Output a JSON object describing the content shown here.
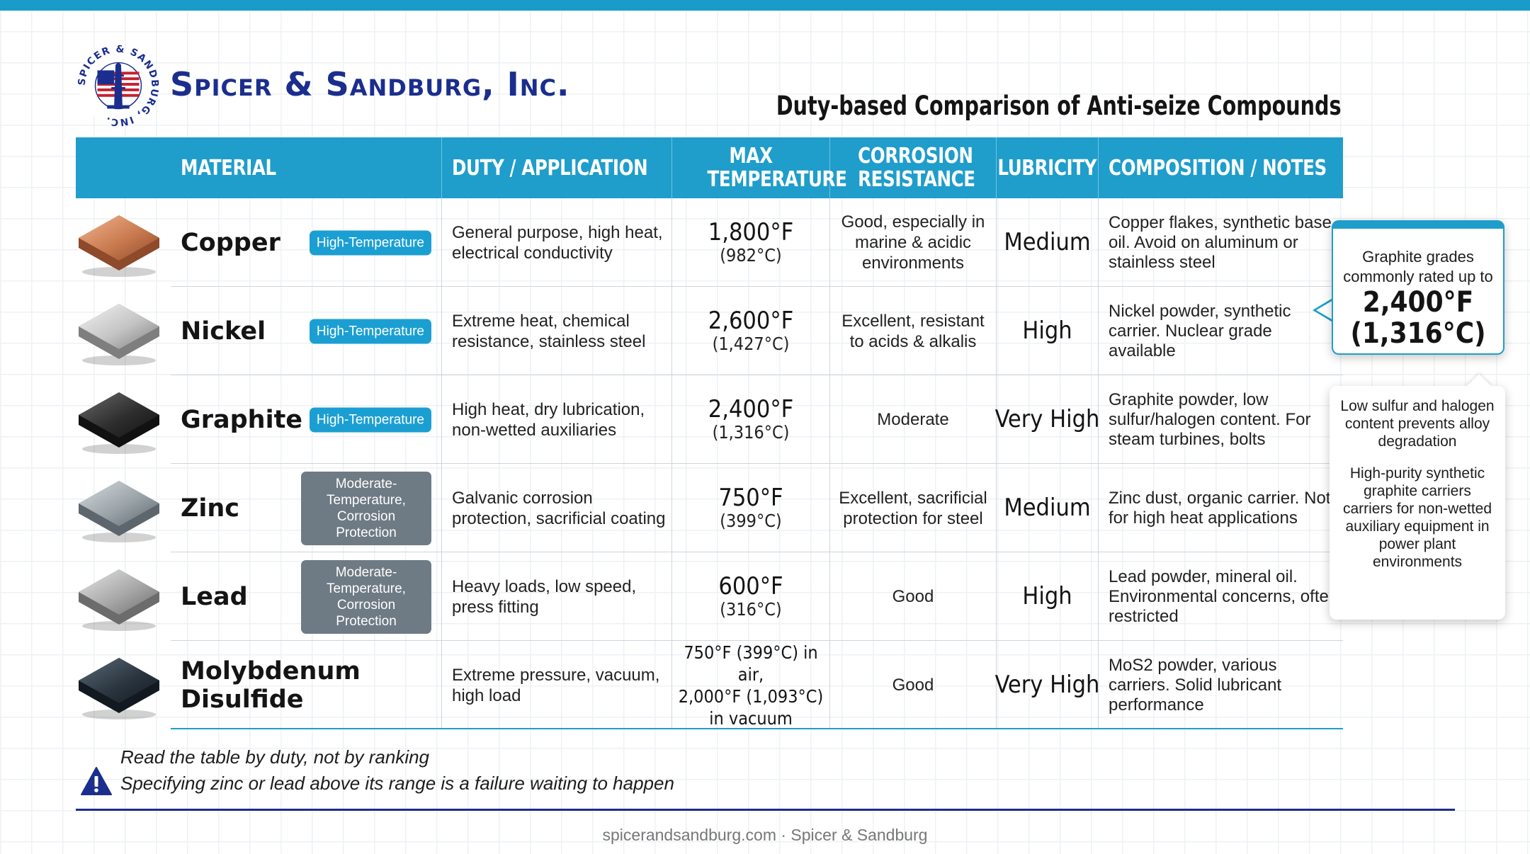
{
  "company": {
    "name": "Spicer & Sandburg, Inc.",
    "logo_ring_text": "SPICER & SANDBURG, INC."
  },
  "document_title": "Duty-based Comparison of Anti-seize Compounds",
  "columns": {
    "material": "MATERIAL",
    "duty": "DUTY / APPLICATION",
    "max_temp": "MAX TEMPERATURE",
    "corrosion": "CORROSION RESISTANCE",
    "lubricity": "LUBRICITY",
    "notes": "COMPOSITION / NOTES"
  },
  "rows": [
    {
      "material": "Copper",
      "swatch": "copper",
      "badge": "High-Temperature",
      "badge_color": "#1b9fd2",
      "duty": "General purpose, high heat, electrical conductivity",
      "temp_f": "1,800°F",
      "temp_c": "(982°C)",
      "corrosion": "Good, especially in marine & acidic environments",
      "lubricity": "Medium",
      "notes": "Copper flakes, synthetic base oil. Avoid on aluminum or stainless steel"
    },
    {
      "material": "Nickel",
      "swatch": "nickel",
      "badge": "High-Temperature",
      "badge_color": "#1b9fd2",
      "duty": "Extreme heat, chemical resistance, stainless steel",
      "temp_f": "2,600°F",
      "temp_c": "(1,427°C)",
      "corrosion": "Excellent, resistant to acids & alkalis",
      "lubricity": "High",
      "notes": "Nickel powder, synthetic carrier. Nuclear grade available"
    },
    {
      "material": "Graphite",
      "swatch": "graphite",
      "badge": "High-Temperature",
      "badge_color": "#1b9fd2",
      "duty": "High heat, dry lubrication, non-wetted auxiliaries",
      "temp_f": "2,400°F",
      "temp_c": "(1,316°C)",
      "corrosion": "Moderate",
      "lubricity": "Very High",
      "notes": "Graphite powder, low sulfur/halogen content. For steam turbines, bolts"
    },
    {
      "material": "Zinc",
      "swatch": "zinc",
      "badge": "Moderate-Temperature, Corrosion Protection",
      "badge_color": "#6e7a84",
      "duty": "Galvanic corrosion protection, sacrificial coating",
      "temp_f": "750°F",
      "temp_c": "(399°C)",
      "corrosion": "Excellent, sacrificial protection for steel",
      "lubricity": "Medium",
      "notes": "Zinc dust, organic carrier. Not for high heat applications"
    },
    {
      "material": "Lead",
      "swatch": "lead",
      "badge": "Moderate-Temperature, Corrosion Protection",
      "badge_color": "#6e7a84",
      "duty": "Heavy loads, low speed, press fitting",
      "temp_f": "600°F",
      "temp_c": "(316°C)",
      "corrosion": "Good",
      "lubricity": "High",
      "notes": "Lead powder, mineral oil. Environmental concerns, often restricted"
    },
    {
      "material": "Molybdenum Disulfide",
      "swatch": "moly",
      "badge": "",
      "duty": "Extreme pressure, vacuum, high load",
      "temp_multi": [
        "750°F (399°C) in air,",
        "2,000°F (1,093°C)",
        "in vacuum"
      ],
      "corrosion": "Good",
      "lubricity": "Very High",
      "notes": "MoS2 powder, various carriers. Solid lubricant performance"
    }
  ],
  "callouts": {
    "graphite_rating": {
      "line1": "Graphite grades commonly rated up to",
      "temp_f": "2,400°F",
      "temp_c": "(1,316°C)"
    },
    "graphite_notes": {
      "p1": "Low sulfur and halogen content prevents alloy degradation",
      "p2": "High-purity synthetic graphite carriers carriers for non-wetted auxiliary equipment in power plant environments"
    }
  },
  "footer": {
    "note1": "Read the table by duty, not by ranking",
    "note2": "Specifying zinc or lead above its range is a failure waiting to happen",
    "source": "spicerandsandburg.com · Spicer & Sandburg"
  },
  "colors": {
    "accent": "#1f9dcb",
    "brand_navy": "#1b2e8e",
    "badge_high": "#1b9fd2",
    "badge_moderate": "#6e7a84"
  }
}
